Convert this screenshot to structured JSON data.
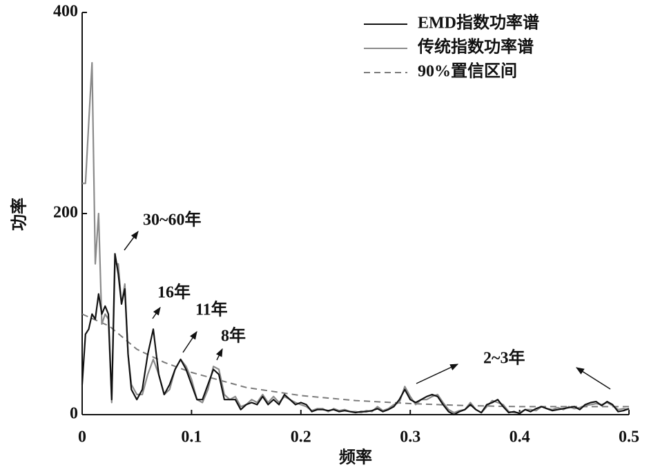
{
  "chart_data": {
    "type": "line",
    "x_label": "频率",
    "y_label": "功率",
    "xlim": [
      0,
      0.5
    ],
    "ylim": [
      0,
      400
    ],
    "xticks": [
      0,
      0.1,
      0.2,
      0.3,
      0.4,
      0.5
    ],
    "yticks": [
      0,
      200,
      400
    ],
    "legend": "top-right",
    "x": [
      0,
      0.003,
      0.006,
      0.009,
      0.012,
      0.015,
      0.018,
      0.021,
      0.024,
      0.027,
      0.03,
      0.033,
      0.036,
      0.039,
      0.042,
      0.045,
      0.05,
      0.055,
      0.06,
      0.065,
      0.07,
      0.075,
      0.08,
      0.085,
      0.09,
      0.095,
      0.1,
      0.105,
      0.11,
      0.115,
      0.12,
      0.125,
      0.13,
      0.135,
      0.14,
      0.145,
      0.15,
      0.155,
      0.16,
      0.165,
      0.17,
      0.175,
      0.18,
      0.185,
      0.19,
      0.195,
      0.2,
      0.205,
      0.21,
      0.215,
      0.22,
      0.225,
      0.23,
      0.235,
      0.24,
      0.245,
      0.25,
      0.255,
      0.26,
      0.265,
      0.27,
      0.275,
      0.28,
      0.285,
      0.29,
      0.295,
      0.3,
      0.305,
      0.31,
      0.315,
      0.32,
      0.325,
      0.33,
      0.335,
      0.34,
      0.345,
      0.35,
      0.355,
      0.36,
      0.365,
      0.37,
      0.375,
      0.38,
      0.385,
      0.39,
      0.395,
      0.4,
      0.405,
      0.41,
      0.415,
      0.42,
      0.425,
      0.43,
      0.435,
      0.44,
      0.445,
      0.45,
      0.455,
      0.46,
      0.465,
      0.47,
      0.475,
      0.48,
      0.485,
      0.49,
      0.495,
      0.5
    ],
    "series": [
      {
        "name": "EMD指数功率谱",
        "color": "#111111",
        "style": "solid",
        "values": [
          30,
          80,
          85,
          100,
          95,
          120,
          100,
          108,
          100,
          15,
          160,
          140,
          110,
          125,
          60,
          25,
          15,
          25,
          60,
          85,
          40,
          20,
          30,
          45,
          55,
          45,
          30,
          15,
          15,
          30,
          45,
          40,
          15,
          15,
          15,
          5,
          10,
          12,
          10,
          18,
          10,
          15,
          10,
          20,
          15,
          10,
          12,
          10,
          3,
          5,
          5,
          4,
          5,
          3,
          4,
          3,
          2,
          3,
          3,
          4,
          6,
          3,
          5,
          8,
          15,
          25,
          15,
          12,
          15,
          18,
          20,
          18,
          10,
          3,
          0,
          3,
          5,
          10,
          5,
          2,
          10,
          12,
          15,
          8,
          2,
          3,
          1,
          5,
          3,
          6,
          8,
          6,
          4,
          5,
          6,
          7,
          8,
          5,
          10,
          12,
          13,
          9,
          13,
          10,
          3,
          4,
          6
        ]
      },
      {
        "name": "传统指数功率谱",
        "color": "#8a8a8a",
        "style": "solid",
        "values": [
          230,
          230,
          290,
          350,
          150,
          200,
          90,
          100,
          95,
          12,
          150,
          150,
          110,
          130,
          60,
          30,
          20,
          20,
          40,
          55,
          40,
          20,
          25,
          45,
          55,
          48,
          35,
          15,
          12,
          25,
          48,
          45,
          20,
          15,
          18,
          8,
          10,
          15,
          12,
          20,
          12,
          18,
          12,
          18,
          15,
          12,
          10,
          8,
          4,
          6,
          6,
          3,
          6,
          4,
          5,
          3,
          3,
          2,
          4,
          3,
          8,
          4,
          6,
          10,
          12,
          28,
          18,
          10,
          15,
          15,
          18,
          20,
          12,
          5,
          2,
          4,
          5,
          12,
          5,
          2,
          8,
          14,
          12,
          10,
          3,
          2,
          2,
          5,
          5,
          4,
          8,
          6,
          5,
          7,
          5,
          8,
          6,
          7,
          9,
          10,
          11,
          10,
          12,
          9,
          5,
          6,
          5
        ]
      },
      {
        "name": "90%置信区间",
        "color": "#7a7a7a",
        "style": "dashed",
        "x": [
          0,
          0.025,
          0.05,
          0.075,
          0.1,
          0.15,
          0.2,
          0.25,
          0.3,
          0.35,
          0.4,
          0.45,
          0.5
        ],
        "values": [
          100,
          88,
          65,
          52,
          42,
          27,
          19,
          14,
          11,
          9,
          8,
          8,
          8
        ]
      }
    ],
    "annotations": [
      "30~60年",
      "16年",
      "11年",
      "8年",
      "2~3年"
    ]
  }
}
